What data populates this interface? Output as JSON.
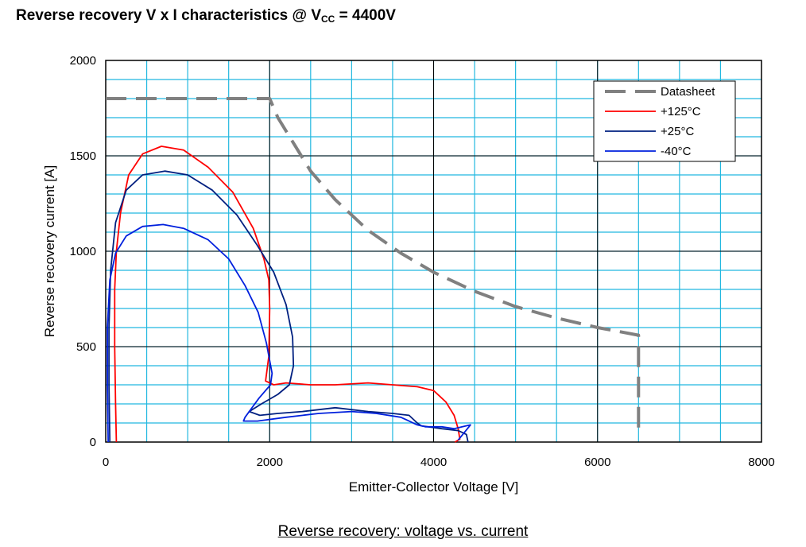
{
  "chart_data": {
    "type": "line",
    "title_main": "Reverse recovery V x I characteristics @ V",
    "title_sub": "CC",
    "title_suffix": " = 4400V",
    "xlabel": "Emitter-Collector Voltage [V]",
    "ylabel": "Reverse recovery current [A]",
    "xlim": [
      0,
      8000
    ],
    "ylim": [
      0,
      2000
    ],
    "x_ticks": [
      0,
      2000,
      4000,
      6000,
      8000
    ],
    "y_ticks": [
      0,
      500,
      1000,
      1500,
      2000
    ],
    "x_tick_labels": [
      "0",
      "2000",
      "4000",
      "6000",
      "8000"
    ],
    "y_tick_labels": [
      "0",
      "500",
      "1000",
      "1500",
      "2000"
    ],
    "grid": true,
    "grid_minor_x_step": 500,
    "grid_minor_y_step": 100,
    "legend_position": "top-right",
    "caption": "Reverse recovery: voltage vs. current",
    "colors": {
      "plot_background": "#ffffff",
      "minor_grid": "#22b8e0",
      "major_grid": "#000000"
    },
    "series": [
      {
        "name": "Datasheet",
        "color": "#808080",
        "style": "dashed",
        "points": [
          [
            0,
            1800
          ],
          [
            2000,
            1800
          ],
          [
            2100,
            1700
          ],
          [
            2300,
            1560
          ],
          [
            2500,
            1420
          ],
          [
            2800,
            1270
          ],
          [
            3200,
            1110
          ],
          [
            3600,
            990
          ],
          [
            4000,
            890
          ],
          [
            4500,
            790
          ],
          [
            5000,
            710
          ],
          [
            5500,
            650
          ],
          [
            6000,
            600
          ],
          [
            6500,
            560
          ],
          [
            6500,
            60
          ]
        ]
      },
      {
        "name": "+125°C",
        "color": "#ff0000",
        "style": "solid",
        "points": [
          [
            130,
            0
          ],
          [
            120,
            200
          ],
          [
            110,
            500
          ],
          [
            110,
            800
          ],
          [
            130,
            1000
          ],
          [
            180,
            1200
          ],
          [
            280,
            1400
          ],
          [
            450,
            1510
          ],
          [
            680,
            1550
          ],
          [
            950,
            1530
          ],
          [
            1250,
            1440
          ],
          [
            1550,
            1310
          ],
          [
            1800,
            1120
          ],
          [
            1930,
            960
          ],
          [
            1990,
            850
          ],
          [
            2000,
            700
          ],
          [
            1990,
            450
          ],
          [
            1950,
            320
          ],
          [
            2050,
            300
          ],
          [
            2200,
            310
          ],
          [
            2500,
            300
          ],
          [
            2800,
            300
          ],
          [
            3200,
            310
          ],
          [
            3500,
            300
          ],
          [
            3800,
            290
          ],
          [
            4000,
            270
          ],
          [
            4150,
            210
          ],
          [
            4250,
            140
          ],
          [
            4300,
            70
          ],
          [
            4320,
            15
          ],
          [
            4260,
            0
          ]
        ]
      },
      {
        "name": "+25°C",
        "color": "#002080",
        "style": "solid",
        "points": [
          [
            50,
            0
          ],
          [
            40,
            300
          ],
          [
            40,
            600
          ],
          [
            60,
            900
          ],
          [
            120,
            1150
          ],
          [
            250,
            1320
          ],
          [
            450,
            1400
          ],
          [
            720,
            1420
          ],
          [
            1000,
            1400
          ],
          [
            1300,
            1320
          ],
          [
            1600,
            1190
          ],
          [
            1850,
            1030
          ],
          [
            2050,
            890
          ],
          [
            2200,
            720
          ],
          [
            2280,
            550
          ],
          [
            2290,
            400
          ],
          [
            2240,
            300
          ],
          [
            2100,
            250
          ],
          [
            1900,
            200
          ],
          [
            1750,
            160
          ],
          [
            1880,
            140
          ],
          [
            2100,
            150
          ],
          [
            2400,
            160
          ],
          [
            2800,
            180
          ],
          [
            3200,
            160
          ],
          [
            3500,
            150
          ],
          [
            3700,
            140
          ],
          [
            3800,
            100
          ],
          [
            3850,
            85
          ],
          [
            4100,
            70
          ],
          [
            4300,
            60
          ],
          [
            4400,
            40
          ],
          [
            4420,
            0
          ]
        ]
      },
      {
        "name": "-40°C",
        "color": "#0020dd",
        "style": "solid",
        "points": [
          [
            30,
            0
          ],
          [
            20,
            300
          ],
          [
            20,
            600
          ],
          [
            50,
            850
          ],
          [
            120,
            990
          ],
          [
            250,
            1080
          ],
          [
            450,
            1130
          ],
          [
            700,
            1140
          ],
          [
            950,
            1120
          ],
          [
            1250,
            1060
          ],
          [
            1500,
            960
          ],
          [
            1700,
            820
          ],
          [
            1860,
            680
          ],
          [
            1960,
            520
          ],
          [
            2030,
            360
          ],
          [
            2010,
            300
          ],
          [
            1870,
            230
          ],
          [
            1700,
            130
          ],
          [
            1680,
            110
          ],
          [
            1850,
            110
          ],
          [
            2200,
            130
          ],
          [
            2600,
            150
          ],
          [
            3000,
            160
          ],
          [
            3300,
            150
          ],
          [
            3600,
            130
          ],
          [
            3700,
            110
          ],
          [
            3800,
            90
          ],
          [
            3900,
            80
          ],
          [
            4100,
            80
          ],
          [
            4250,
            70
          ],
          [
            4350,
            80
          ],
          [
            4450,
            90
          ],
          [
            4300,
            10
          ]
        ]
      }
    ]
  }
}
